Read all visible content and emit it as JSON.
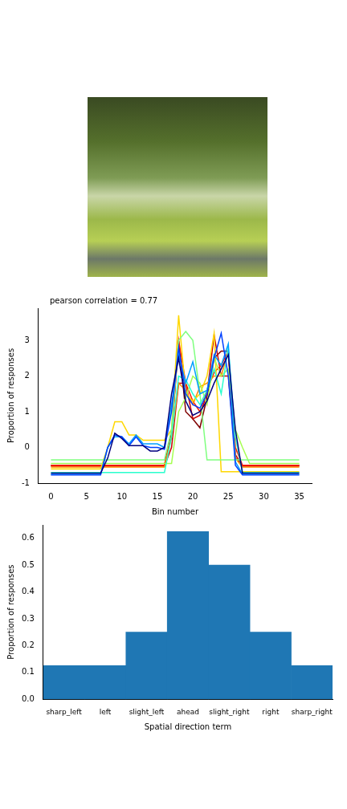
{
  "chart_data": [
    {
      "type": "line",
      "annotation": "pearson correlation = 0.77",
      "x_label": "Bin number",
      "y_label": "Proportion of responses",
      "x": [
        0,
        1,
        2,
        3,
        4,
        5,
        6,
        7,
        8,
        9,
        10,
        11,
        12,
        13,
        14,
        15,
        16,
        17,
        18,
        19,
        20,
        21,
        22,
        23,
        24,
        25,
        26,
        27,
        28,
        29,
        30,
        31,
        32,
        33,
        34,
        35
      ],
      "series": [
        {
          "color": "#00007f",
          "values": [
            -0.72,
            -0.72,
            -0.72,
            -0.72,
            -0.72,
            -0.72,
            -0.72,
            -0.72,
            -0.3,
            0.4,
            0.25,
            0.05,
            0.05,
            0.05,
            -0.1,
            -0.1,
            0.0,
            1.5,
            2.5,
            1.3,
            0.9,
            1.0,
            1.3,
            1.8,
            2.2,
            2.6,
            0.5,
            -0.72,
            -0.72,
            -0.72,
            -0.72,
            -0.72,
            -0.72,
            -0.72,
            -0.72,
            -0.72
          ]
        },
        {
          "color": "#0040ff",
          "values": [
            -0.77,
            -0.77,
            -0.77,
            -0.77,
            -0.77,
            -0.77,
            -0.77,
            -0.77,
            0.0,
            0.35,
            0.3,
            0.05,
            0.3,
            0.05,
            0.0,
            0.0,
            -0.05,
            1.0,
            2.8,
            1.5,
            1.2,
            1.1,
            1.5,
            2.5,
            3.2,
            2.0,
            -0.5,
            -0.77,
            -0.77,
            -0.77,
            -0.77,
            -0.77,
            -0.77,
            -0.77,
            -0.77,
            -0.77
          ]
        },
        {
          "color": "#00a0ff",
          "values": [
            -0.75,
            -0.75,
            -0.75,
            -0.75,
            -0.75,
            -0.75,
            -0.75,
            -0.75,
            0.0,
            0.3,
            0.3,
            0.1,
            0.35,
            0.1,
            0.1,
            0.1,
            0.0,
            1.2,
            2.6,
            1.8,
            2.4,
            1.5,
            1.6,
            2.6,
            2.3,
            2.9,
            -0.4,
            -0.75,
            -0.75,
            -0.75,
            -0.75,
            -0.75,
            -0.75,
            -0.75,
            -0.75,
            -0.75
          ]
        },
        {
          "color": "#29ffce",
          "values": [
            -0.7,
            -0.7,
            -0.7,
            -0.7,
            -0.7,
            -0.7,
            -0.7,
            -0.7,
            -0.7,
            -0.7,
            -0.7,
            -0.7,
            -0.7,
            -0.7,
            -0.7,
            -0.7,
            -0.7,
            0.3,
            2.0,
            1.9,
            1.5,
            1.2,
            1.6,
            2.2,
            1.5,
            2.8,
            0.3,
            -0.7,
            -0.7,
            -0.7,
            -0.7,
            -0.7,
            -0.7,
            -0.7,
            -0.7,
            -0.7
          ]
        },
        {
          "color": "#7fff7f",
          "values": [
            -0.35,
            -0.35,
            -0.35,
            -0.35,
            -0.35,
            -0.35,
            -0.35,
            -0.35,
            -0.35,
            -0.35,
            -0.35,
            -0.35,
            -0.35,
            -0.35,
            -0.35,
            -0.35,
            -0.35,
            0.5,
            3.0,
            3.25,
            3.0,
            1.5,
            -0.35,
            -0.35,
            -0.35,
            -0.35,
            -0.35,
            -0.35,
            -0.35,
            -0.35,
            -0.35,
            -0.35,
            -0.35,
            -0.35,
            -0.35,
            -0.35
          ]
        },
        {
          "color": "#a6ff50",
          "values": [
            -0.45,
            -0.45,
            -0.45,
            -0.45,
            -0.45,
            -0.45,
            -0.45,
            -0.45,
            -0.45,
            -0.45,
            -0.45,
            -0.45,
            -0.45,
            -0.45,
            -0.45,
            -0.45,
            -0.45,
            -0.45,
            1.0,
            1.4,
            2.0,
            1.8,
            1.2,
            2.5,
            2.0,
            2.2,
            0.5,
            0.0,
            -0.45,
            -0.45,
            -0.45,
            -0.45,
            -0.45,
            -0.45,
            -0.45,
            -0.45
          ]
        },
        {
          "color": "#ffd700",
          "values": [
            -0.6,
            -0.6,
            -0.6,
            -0.6,
            -0.6,
            -0.6,
            -0.6,
            -0.6,
            0.0,
            0.72,
            0.72,
            0.35,
            0.35,
            0.2,
            0.2,
            0.2,
            0.2,
            0.5,
            3.7,
            1.5,
            1.3,
            1.5,
            2.0,
            3.2,
            -0.68,
            -0.68,
            -0.68,
            -0.68,
            -0.68,
            -0.68,
            -0.68,
            -0.68,
            -0.68,
            -0.68,
            -0.68,
            -0.68
          ]
        },
        {
          "color": "#ff8c00",
          "values": [
            -0.55,
            -0.55,
            -0.55,
            -0.55,
            -0.55,
            -0.55,
            -0.55,
            -0.55,
            -0.55,
            -0.55,
            -0.55,
            -0.55,
            -0.55,
            -0.55,
            -0.55,
            -0.55,
            -0.55,
            0.3,
            1.8,
            1.6,
            1.2,
            1.7,
            1.8,
            2.0,
            2.0,
            2.7,
            -0.3,
            -0.55,
            -0.55,
            -0.55,
            -0.55,
            -0.55,
            -0.55,
            -0.55,
            -0.55,
            -0.55
          ]
        },
        {
          "color": "#ff1a00",
          "values": [
            -0.5,
            -0.5,
            -0.5,
            -0.5,
            -0.5,
            -0.5,
            -0.5,
            -0.5,
            -0.5,
            -0.5,
            -0.5,
            -0.5,
            -0.5,
            -0.5,
            -0.5,
            -0.5,
            -0.5,
            0.3,
            3.0,
            1.8,
            1.3,
            1.0,
            1.6,
            2.1,
            2.3,
            2.7,
            0.0,
            -0.5,
            -0.5,
            -0.5,
            -0.5,
            -0.5,
            -0.5,
            -0.5,
            -0.5,
            -0.5
          ]
        },
        {
          "color": "#cc0000",
          "values": [
            -0.52,
            -0.52,
            -0.52,
            -0.52,
            -0.52,
            -0.52,
            -0.52,
            -0.52,
            -0.52,
            -0.52,
            -0.52,
            -0.52,
            -0.52,
            -0.52,
            -0.52,
            -0.52,
            -0.52,
            0.0,
            1.8,
            1.8,
            0.8,
            0.9,
            1.5,
            3.15,
            2.0,
            2.0,
            -0.2,
            -0.52,
            -0.52,
            -0.52,
            -0.52,
            -0.52,
            -0.52,
            -0.52,
            -0.52,
            -0.52
          ]
        },
        {
          "color": "#7f0000",
          "values": [
            -0.5,
            -0.5,
            -0.5,
            -0.5,
            -0.5,
            -0.5,
            -0.5,
            -0.5,
            -0.5,
            -0.5,
            -0.5,
            -0.5,
            -0.5,
            -0.5,
            -0.5,
            -0.5,
            -0.5,
            0.4,
            3.0,
            1.0,
            0.8,
            0.55,
            1.4,
            2.5,
            2.7,
            2.7,
            -0.3,
            -0.5,
            -0.5,
            -0.5,
            -0.5,
            -0.5,
            -0.5,
            -0.5,
            -0.5,
            -0.5
          ]
        }
      ],
      "xlim": [
        -1.75,
        36.75
      ],
      "ylim": [
        -1,
        3.9
      ],
      "xticks": [
        0,
        5,
        10,
        15,
        20,
        25,
        30,
        35
      ],
      "yticks": [
        -1,
        0,
        1,
        2,
        3
      ],
      "grid": false
    },
    {
      "type": "bar",
      "x_label": "Spatial direction term",
      "y_label": "Proportion of responses",
      "categories": [
        "sharp_left",
        "left",
        "slight_left",
        "ahead",
        "slight_right",
        "right",
        "sharp_right"
      ],
      "values": [
        0.125,
        0.125,
        0.25,
        0.625,
        0.5,
        0.25,
        0.125
      ],
      "color": "#1f77b4",
      "ylim": [
        0,
        0.65
      ],
      "yticks": [
        {
          "value": 0,
          "label": "0.0"
        },
        0.1,
        0.2,
        0.3,
        0.4,
        0.5,
        0.6
      ],
      "grid": false
    }
  ]
}
